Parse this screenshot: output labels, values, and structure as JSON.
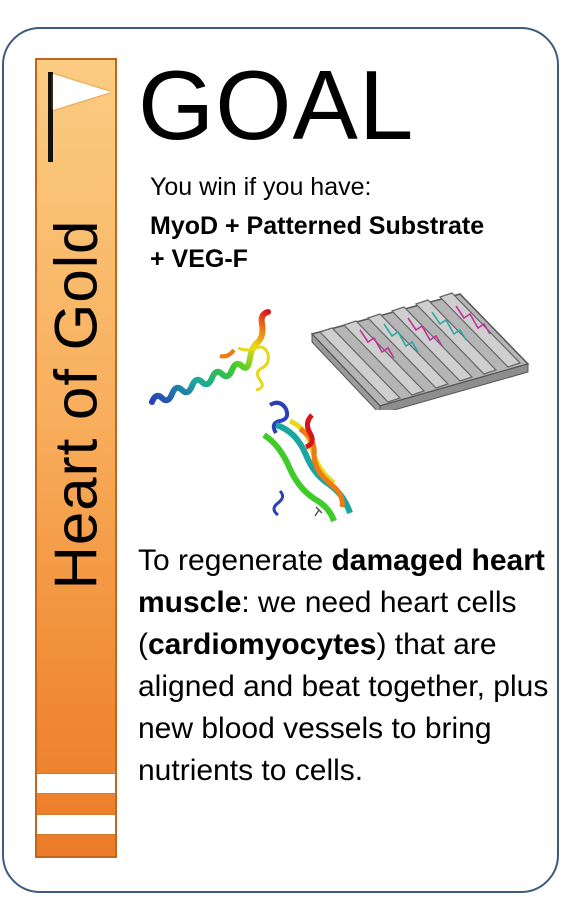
{
  "card": {
    "side_title": "Heart of Gold",
    "heading": "GOAL",
    "win_label": "You win if you have:",
    "win_combo_line1": "MyoD + Patterned Substrate",
    "win_combo_line2": "+ VEG-F",
    "description": {
      "p1": "To regenerate ",
      "b1": "damaged heart muscle",
      "p2": ": we need heart cells (",
      "b2": "cardiomyocytes",
      "p3": ") that are aligned and beat together, plus new blood vessels to bring nutrients to cells."
    }
  },
  "colors": {
    "border": "#3d5a80",
    "bar_top": "#fbcd82",
    "bar_bottom": "#ec7c28",
    "bar_edge": "#c0661f"
  },
  "icons": [
    "flag-icon",
    "myod-protein-image",
    "patterned-substrate-image",
    "vegf-protein-image"
  ]
}
